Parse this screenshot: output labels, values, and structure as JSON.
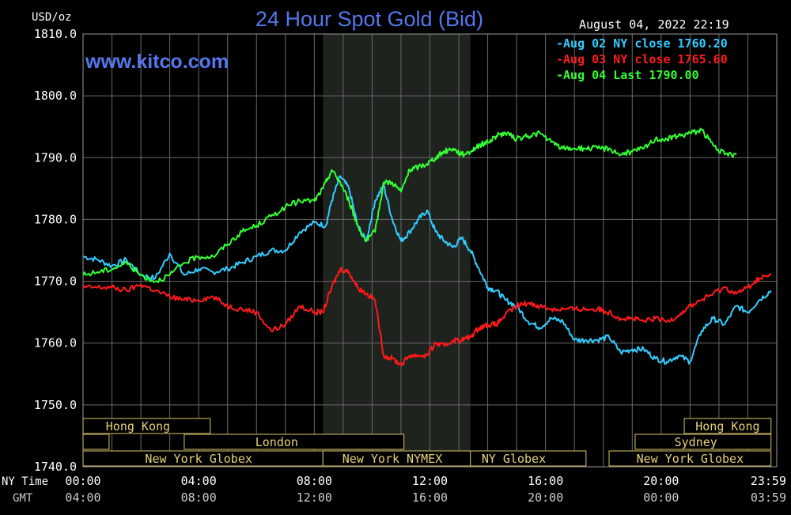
{
  "chart_data": {
    "type": "line",
    "title": "24 Hour Spot Gold (Bid)",
    "watermark": "www.kitco.com",
    "y_unit_label": "USD/oz",
    "timestamp": "August 04, 2022 22:19",
    "ylim": [
      1740,
      1810
    ],
    "xlim": [
      0,
      24
    ],
    "y_ticks": [
      "1810.0",
      "1800.0",
      "1790.0",
      "1780.0",
      "1770.0",
      "1760.0",
      "1750.0",
      "1740.0"
    ],
    "x_row_labels": {
      "ny": "NY Time",
      "gmt": "GMT"
    },
    "x_ticks_ny": [
      "00:00",
      "04:00",
      "08:00",
      "12:00",
      "16:00",
      "20:00",
      "23:59"
    ],
    "x_ticks_gmt": [
      "04:00",
      "08:00",
      "12:00",
      "16:00",
      "20:00",
      "00:00",
      "03:59"
    ],
    "grid": true,
    "legend_position": "top-right",
    "series": [
      {
        "name": "Aug 02 NY close 1760.20",
        "color": "#33ccff",
        "x": [
          0,
          0.5,
          1,
          1.5,
          2,
          2.5,
          3,
          3.5,
          4,
          4.5,
          5,
          5.5,
          6,
          6.5,
          7,
          7.5,
          8,
          8.4,
          8.6,
          8.9,
          9.2,
          9.5,
          9.8,
          10.1,
          10.4,
          10.7,
          11,
          11.3,
          11.6,
          11.9,
          12.2,
          12.5,
          12.8,
          13.1,
          13.4,
          13.7,
          14,
          14.3,
          14.6,
          15,
          15.4,
          15.8,
          16.2,
          16.6,
          17,
          17.4,
          17.8,
          18.2,
          18.6,
          19,
          19.4,
          19.8,
          20.2,
          20.6,
          21,
          21.4,
          21.8,
          22.2,
          22.6,
          23,
          23.4,
          23.8
        ],
        "y": [
          1774,
          1773.5,
          1772.5,
          1773.5,
          1771,
          1770.5,
          1774.5,
          1771,
          1772,
          1771.5,
          1772,
          1773,
          1774,
          1775,
          1775,
          1778,
          1779.5,
          1779,
          1783,
          1787,
          1785,
          1779,
          1776.5,
          1783,
          1785.5,
          1780,
          1776.5,
          1778,
          1780,
          1781.5,
          1778,
          1776.5,
          1775.5,
          1777,
          1775,
          1772,
          1769,
          1768.5,
          1767,
          1766,
          1763.5,
          1762.5,
          1764,
          1763.5,
          1760.5,
          1760.5,
          1760.5,
          1761,
          1758.5,
          1759,
          1759,
          1757.5,
          1757,
          1758,
          1757,
          1762,
          1764,
          1763,
          1766,
          1765,
          1767,
          1768.5
        ]
      },
      {
        "name": "Aug 03 NY close 1765.60",
        "color": "#ff1a1a",
        "x": [
          0,
          0.5,
          1,
          1.5,
          2,
          2.5,
          3,
          3.5,
          4,
          4.5,
          5,
          5.5,
          6,
          6.5,
          7,
          7.5,
          8,
          8.3,
          8.6,
          8.9,
          9.2,
          9.5,
          9.8,
          10.1,
          10.4,
          10.7,
          11,
          11.3,
          11.6,
          11.9,
          12.2,
          12.5,
          12.8,
          13.1,
          13.4,
          13.7,
          14,
          14.3,
          14.6,
          15,
          15.4,
          15.8,
          16.2,
          16.6,
          17,
          17.4,
          17.8,
          18.2,
          18.6,
          19,
          19.4,
          19.8,
          20.2,
          20.6,
          21,
          21.4,
          21.8,
          22.2,
          22.6,
          23,
          23.4,
          23.8
        ],
        "y": [
          1769,
          1769,
          1769,
          1768.5,
          1769.5,
          1768.5,
          1767.5,
          1767,
          1767,
          1767.5,
          1766,
          1765.5,
          1765,
          1762,
          1763,
          1766,
          1765,
          1765,
          1769,
          1772,
          1771.5,
          1769,
          1768,
          1767,
          1758,
          1757.5,
          1756.5,
          1758,
          1758,
          1758,
          1760,
          1759.5,
          1760.5,
          1760.5,
          1761,
          1762.5,
          1763,
          1763,
          1764.5,
          1766,
          1766.5,
          1766,
          1765.5,
          1765.5,
          1765.5,
          1765.5,
          1765.5,
          1765,
          1764,
          1764,
          1763.5,
          1764,
          1763.5,
          1764.5,
          1766,
          1767,
          1768,
          1769,
          1768,
          1769,
          1770.5,
          1771
        ]
      },
      {
        "name": "Aug 04 Last 1790.00",
        "color": "#33ff33",
        "x": [
          0,
          0.5,
          1,
          1.5,
          2,
          2.5,
          3,
          3.5,
          4,
          4.5,
          5,
          5.5,
          6,
          6.5,
          7,
          7.5,
          8,
          8.3,
          8.6,
          8.9,
          9.2,
          9.5,
          9.8,
          10.1,
          10.4,
          10.7,
          11,
          11.3,
          11.6,
          11.9,
          12.2,
          12.5,
          12.8,
          13.1,
          13.4,
          13.7,
          14,
          14.3,
          14.6,
          15,
          15.4,
          15.8,
          16.2,
          16.6,
          17,
          17.4,
          17.8,
          18.2,
          18.6,
          19,
          19.4,
          19.8,
          20.2,
          20.6,
          21,
          21.4,
          21.8,
          22.2,
          22.6
        ],
        "y": [
          1771,
          1771.5,
          1772,
          1773,
          1771,
          1770,
          1771,
          1773,
          1774,
          1774,
          1776,
          1778,
          1779,
          1780.5,
          1782,
          1783,
          1783,
          1785,
          1788,
          1786,
          1783,
          1779,
          1776.5,
          1778,
          1786,
          1786,
          1784.5,
          1788,
          1788.5,
          1789,
          1790,
          1791,
          1791.5,
          1790.5,
          1791,
          1792,
          1792.5,
          1793.5,
          1794,
          1793,
          1793.5,
          1794,
          1792.5,
          1791.5,
          1791.5,
          1791.5,
          1791.5,
          1791.5,
          1790.5,
          1791,
          1791.5,
          1793,
          1793,
          1793.5,
          1794,
          1794.5,
          1792,
          1790.5,
          1790.5
        ]
      }
    ],
    "annotations": {
      "highlight_band_hours": [
        8.3,
        13.4
      ],
      "session_rows": [
        [
          {
            "label": "Hong Kong",
            "start": 0,
            "end": 4.4,
            "label_at": 1.9
          },
          {
            "label": "Hong Kong",
            "start": 20.8,
            "end": 23.8,
            "label_at": 22.3
          }
        ],
        [
          {
            "label": "",
            "start": 0,
            "end": 0.9
          },
          {
            "label": "London",
            "start": 3.5,
            "end": 11.1,
            "label_at": 6.7
          },
          {
            "label": "Sydney",
            "start": 19.1,
            "end": 23.8,
            "label_at": 21.2
          }
        ],
        [
          {
            "label": "New York Globex",
            "start": 0,
            "end": 8.3,
            "label_at": 4.0
          },
          {
            "label": "New York NYMEX",
            "start": 8.3,
            "end": 13.4,
            "label_at": 10.7
          },
          {
            "label": "NY Globex",
            "start": 13.4,
            "end": 17.4,
            "label_at": 14.9
          },
          {
            "label": "New York Globex",
            "start": 18.2,
            "end": 23.8,
            "label_at": 21.0
          }
        ]
      ]
    }
  }
}
